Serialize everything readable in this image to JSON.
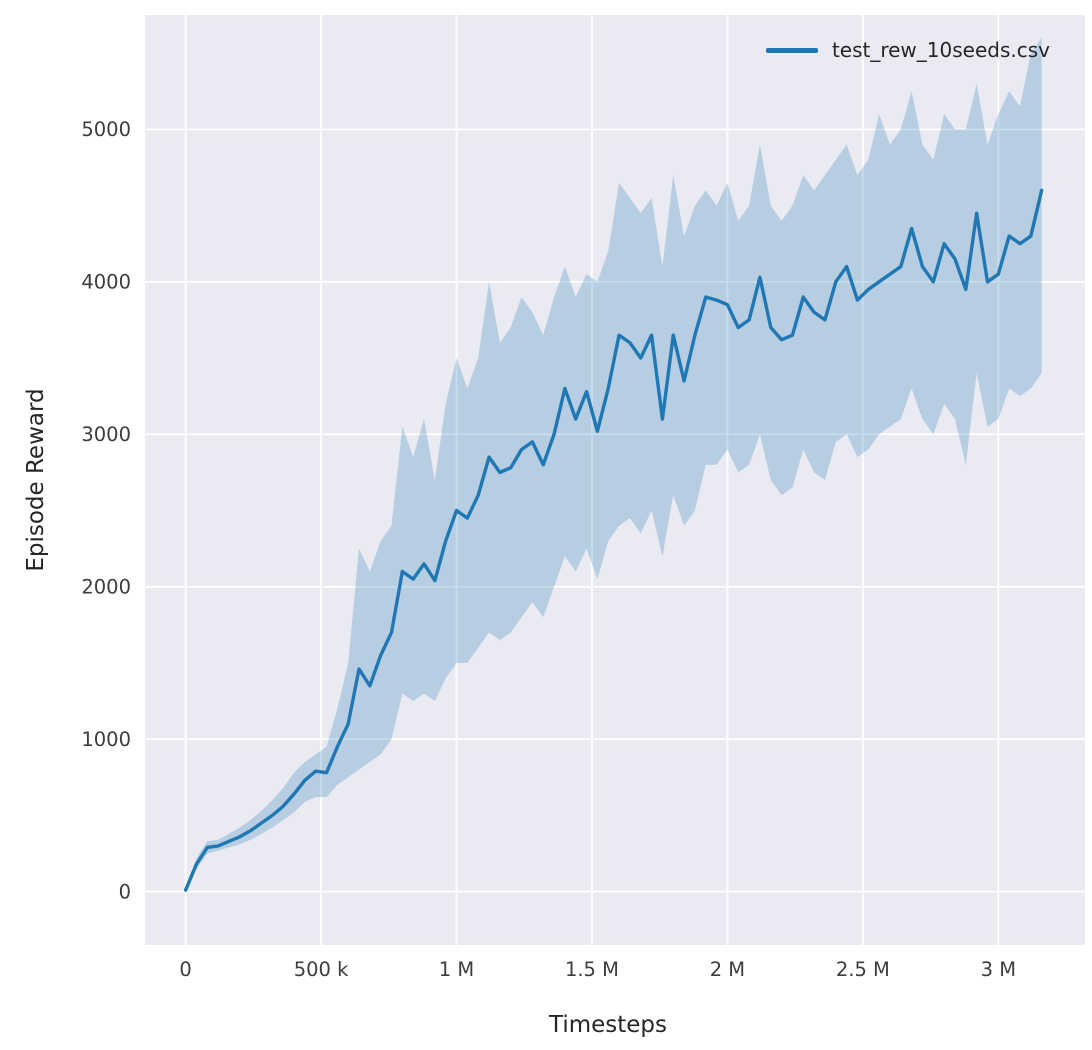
{
  "chart_data": {
    "type": "line",
    "title": "",
    "xlabel": "Timesteps",
    "ylabel": "Episode Reward",
    "xlim": [
      -150000,
      3320000
    ],
    "ylim": [
      -350,
      5750
    ],
    "grid": true,
    "legend_position": "upper right",
    "background_color": "#eaeaf2",
    "grid_color": "#ffffff",
    "tick_color": "#3d3d3d",
    "xticks": {
      "values": [
        0,
        500000,
        1000000,
        1500000,
        2000000,
        2500000,
        3000000
      ],
      "labels": [
        "0",
        "500 k",
        "1 M",
        "1.5 M",
        "2 M",
        "2.5 M",
        "3 M"
      ]
    },
    "yticks": {
      "values": [
        0,
        1000,
        2000,
        3000,
        4000,
        5000
      ],
      "labels": [
        "0",
        "1000",
        "2000",
        "3000",
        "4000",
        "5000"
      ]
    },
    "series": [
      {
        "name": "test_rew_10seeds.csv",
        "color": "#1f77b4",
        "band_opacity": 0.25,
        "x": [
          0,
          40000,
          80000,
          120000,
          160000,
          200000,
          240000,
          280000,
          320000,
          360000,
          400000,
          440000,
          480000,
          520000,
          560000,
          600000,
          640000,
          680000,
          720000,
          760000,
          800000,
          840000,
          880000,
          920000,
          960000,
          1000000,
          1040000,
          1080000,
          1120000,
          1160000,
          1200000,
          1240000,
          1280000,
          1320000,
          1360000,
          1400000,
          1440000,
          1480000,
          1520000,
          1560000,
          1600000,
          1640000,
          1680000,
          1720000,
          1760000,
          1800000,
          1840000,
          1880000,
          1920000,
          1960000,
          2000000,
          2040000,
          2080000,
          2120000,
          2160000,
          2200000,
          2240000,
          2280000,
          2320000,
          2360000,
          2400000,
          2440000,
          2480000,
          2520000,
          2560000,
          2600000,
          2640000,
          2680000,
          2720000,
          2760000,
          2800000,
          2840000,
          2880000,
          2920000,
          2960000,
          3000000,
          3040000,
          3080000,
          3120000,
          3160000
        ],
        "mean": [
          10,
          180,
          290,
          300,
          330,
          360,
          400,
          450,
          500,
          560,
          640,
          730,
          790,
          780,
          950,
          1100,
          1460,
          1350,
          1550,
          1700,
          2100,
          2050,
          2150,
          2040,
          2300,
          2500,
          2450,
          2600,
          2850,
          2750,
          2780,
          2900,
          2950,
          2800,
          3000,
          3300,
          3100,
          3280,
          3020,
          3300,
          3650,
          3600,
          3500,
          3650,
          3100,
          3650,
          3350,
          3650,
          3900,
          3880,
          3850,
          3700,
          3750,
          4030,
          3700,
          3620,
          3650,
          3900,
          3800,
          3750,
          4000,
          4100,
          3880,
          3950,
          4000,
          4050,
          4100,
          4350,
          4100,
          4000,
          4250,
          4150,
          3950,
          4450,
          4000,
          4050,
          4300,
          4250,
          4300,
          4600
        ],
        "lower": [
          0,
          150,
          250,
          270,
          290,
          310,
          340,
          380,
          420,
          470,
          520,
          590,
          620,
          620,
          700,
          750,
          800,
          850,
          900,
          1000,
          1300,
          1250,
          1300,
          1250,
          1400,
          1500,
          1500,
          1600,
          1700,
          1650,
          1700,
          1800,
          1900,
          1800,
          2000,
          2200,
          2100,
          2250,
          2050,
          2300,
          2400,
          2450,
          2350,
          2500,
          2200,
          2600,
          2400,
          2500,
          2800,
          2800,
          2900,
          2750,
          2800,
          3000,
          2700,
          2600,
          2650,
          2900,
          2750,
          2700,
          2950,
          3000,
          2850,
          2900,
          3000,
          3050,
          3100,
          3300,
          3100,
          3000,
          3200,
          3100,
          2800,
          3400,
          3050,
          3100,
          3300,
          3250,
          3300,
          3400
        ],
        "upper": [
          30,
          220,
          330,
          340,
          380,
          420,
          470,
          530,
          600,
          680,
          780,
          850,
          900,
          950,
          1200,
          1500,
          2250,
          2100,
          2300,
          2400,
          3050,
          2850,
          3100,
          2700,
          3200,
          3500,
          3300,
          3500,
          4000,
          3600,
          3700,
          3900,
          3800,
          3650,
          3900,
          4100,
          3900,
          4050,
          4000,
          4200,
          4650,
          4550,
          4450,
          4550,
          4100,
          4700,
          4300,
          4500,
          4600,
          4500,
          4650,
          4400,
          4500,
          4900,
          4500,
          4400,
          4500,
          4700,
          4600,
          4700,
          4800,
          4900,
          4700,
          4800,
          5100,
          4900,
          5000,
          5250,
          4900,
          4800,
          5100,
          5000,
          5000,
          5300,
          4900,
          5100,
          5250,
          5150,
          5500,
          5600
        ]
      }
    ]
  }
}
